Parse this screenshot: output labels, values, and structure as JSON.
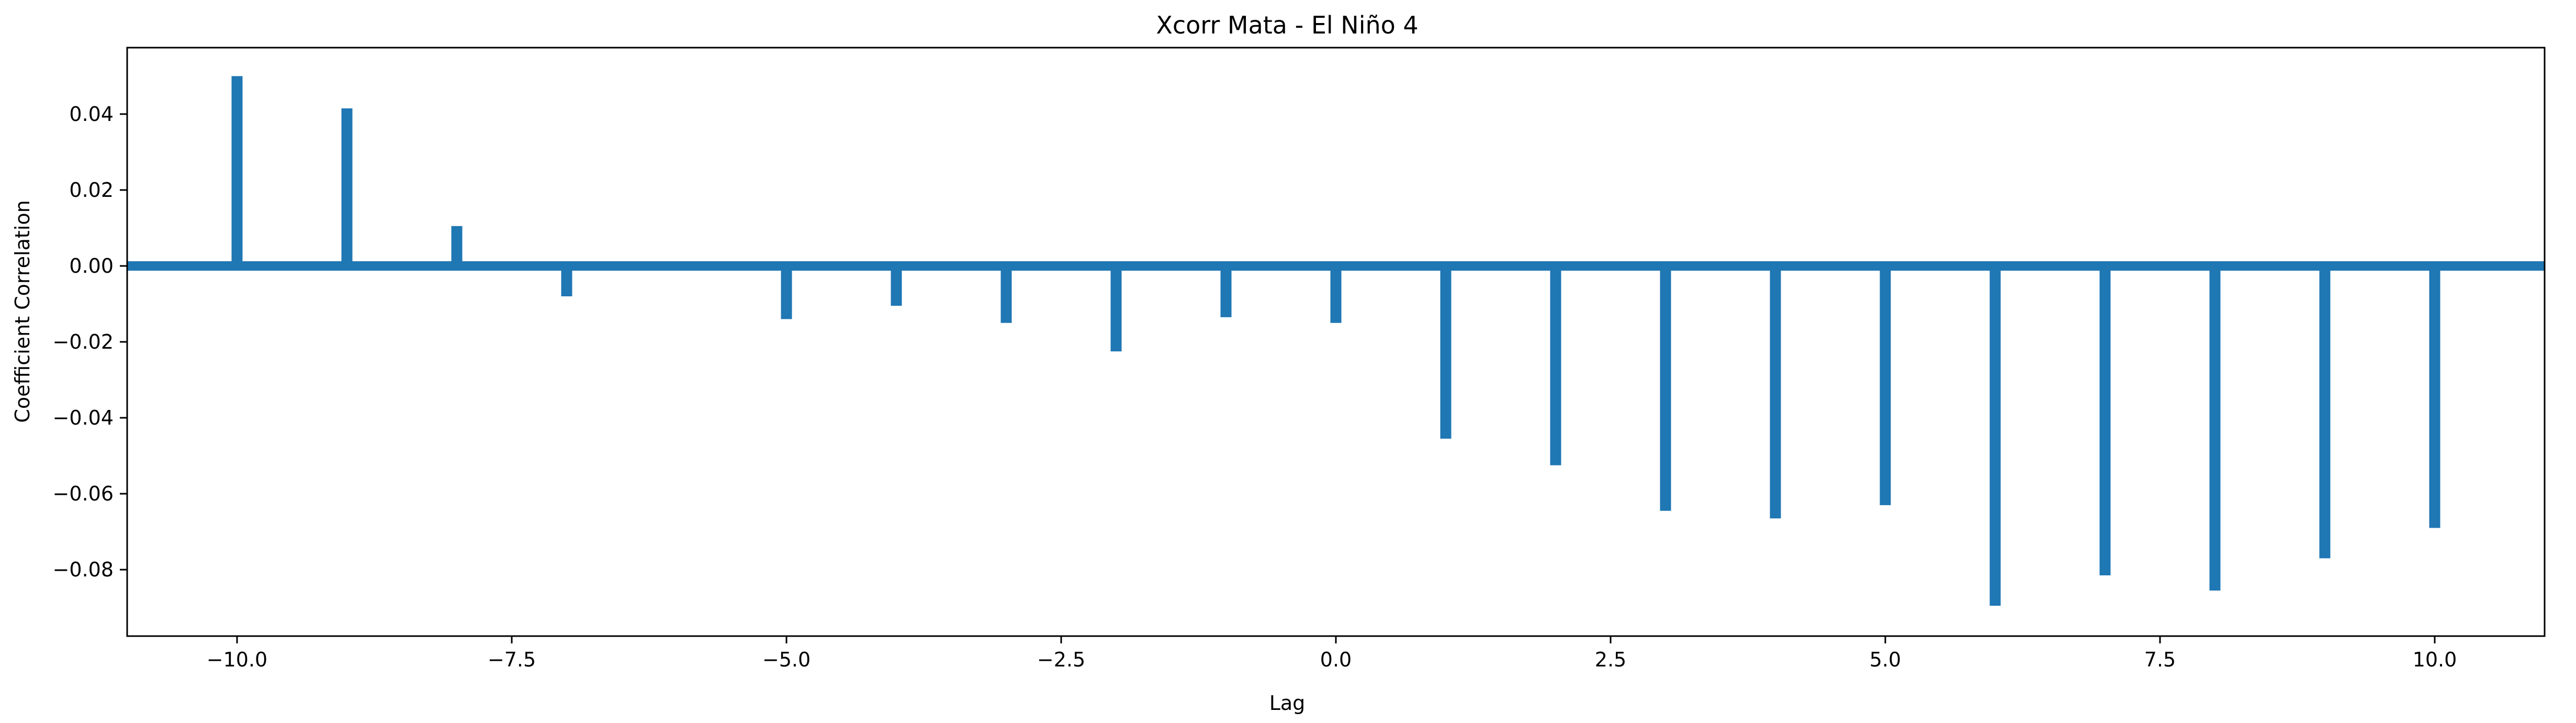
{
  "chart_data": {
    "type": "bar",
    "title": "Xcorr Mata - El Niño 4",
    "xlabel": "Lag",
    "ylabel": "Coefficient Correlation",
    "xlim": [
      -11.0,
      11.0
    ],
    "ylim": [
      -0.0975,
      0.0575
    ],
    "xticks": [
      -10.0,
      -7.5,
      -5.0,
      -2.5,
      0.0,
      2.5,
      5.0,
      7.5,
      10.0
    ],
    "xtick_labels": [
      "−10.0",
      "−7.5",
      "−5.0",
      "−2.5",
      "0.0",
      "2.5",
      "5.0",
      "7.5",
      "10.0"
    ],
    "yticks": [
      0.04,
      0.02,
      0.0,
      -0.02,
      -0.04,
      -0.06,
      -0.08
    ],
    "ytick_labels": [
      "0.04",
      "0.02",
      "0.00",
      "−0.02",
      "−0.04",
      "−0.06",
      "−0.08"
    ],
    "baseline": 0.0,
    "grid": false,
    "color": "#1f77b4",
    "lags": [
      -10,
      -9,
      -8,
      -7,
      -6,
      -5,
      -4,
      -3,
      -2,
      -1,
      0,
      1,
      2,
      3,
      4,
      5,
      6,
      7,
      8,
      9,
      10
    ],
    "values": [
      0.05,
      0.0415,
      0.0105,
      -0.008,
      0.0,
      -0.014,
      -0.0105,
      -0.015,
      -0.0225,
      -0.0135,
      -0.015,
      -0.0455,
      -0.0525,
      -0.0645,
      -0.0665,
      -0.063,
      -0.0895,
      -0.0815,
      -0.0855,
      -0.077,
      -0.069
    ]
  }
}
